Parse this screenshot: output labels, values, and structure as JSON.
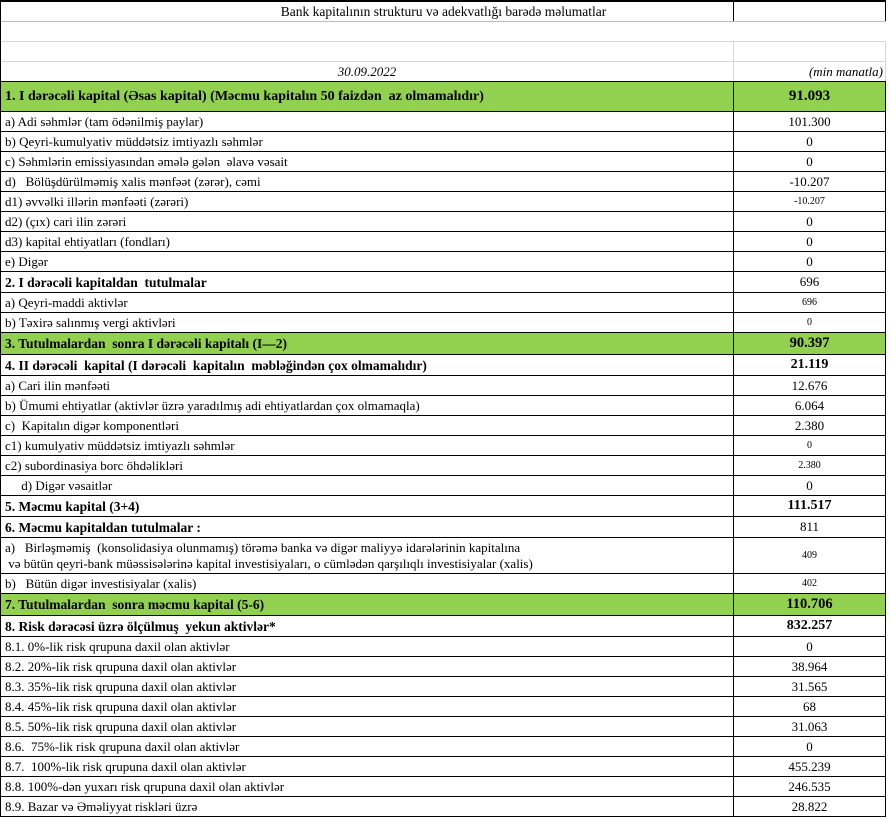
{
  "header": {
    "title": "Bank kapitalının strukturu və adekvatlığı barədə məlumatlar",
    "date": "30.09.2022",
    "unit": "(min manatla)"
  },
  "colors": {
    "highlight_green": "#92D050",
    "grid_black": "#000000",
    "grid_light": "#d8d8d8"
  },
  "table": {
    "rows": [
      {
        "kind": "main",
        "label": "1. I dərəcəli kapital (Əsas kapital) (Məcmu kapitalın 50 faizdən  az olmamalıdır)",
        "value": "91.093"
      },
      {
        "kind": "item",
        "label": "a) Adi səhmlər (tam ödənilmiş paylar)",
        "value": "101.300"
      },
      {
        "kind": "item",
        "label": "b) Qeyri-kumulyativ müddətsiz imtiyazlı səhmlər",
        "value": "0"
      },
      {
        "kind": "item",
        "label": "c) Səhmlərin emissiyasından əmələ gələn  əlavə vəsait",
        "value": "0"
      },
      {
        "kind": "item",
        "label": "d)   Bölüşdürülməmiş xalis mənfəət (zərər), cəmi",
        "value": "-10.207"
      },
      {
        "kind": "item-sm",
        "label": "d1) əvvəlki illərin mənfəəti (zərəri)",
        "value": "-10.207"
      },
      {
        "kind": "item",
        "label": "d2) (çıx) cari ilin zərəri",
        "value": "0"
      },
      {
        "kind": "item",
        "label": "d3) kapital ehtiyatları (fondları)",
        "value": "0"
      },
      {
        "kind": "item",
        "label": "e) Digər",
        "value": "0"
      },
      {
        "kind": "sec",
        "label": "2. I dərəcəli kapitaldan  tutulmalar",
        "value": "696"
      },
      {
        "kind": "item-sm",
        "label": "a) Qeyri-maddi aktivlər",
        "value": "696"
      },
      {
        "kind": "item-sm",
        "label": "b) Təxirə salınmış vergi aktivləri",
        "value": "0"
      },
      {
        "kind": "green",
        "label": "3. Tutulmalardan  sonra I dərəcəli kapitalı (I—2)",
        "value": "90.397"
      },
      {
        "kind": "sec-b",
        "label": "4. II dərəcəli  kapital (I dərəcəli  kapitalın  məbləğindən çox olmamalıdır)",
        "value": "21.119"
      },
      {
        "kind": "item",
        "label": "a) Cari ilin mənfəəti",
        "value": "12.676"
      },
      {
        "kind": "item",
        "label": "b) Ümumi ehtiyatlar (aktivlər üzrə yaradılmış adi ehtiyatlardan çox olmamaqla)",
        "value": "6.064"
      },
      {
        "kind": "item",
        "label": "c)  Kapitalın digər komponentləri",
        "value": "2.380"
      },
      {
        "kind": "item-sm",
        "label": "c1) kumulyativ müddətsiz imtiyazlı səhmlər",
        "value": "0"
      },
      {
        "kind": "item-sm",
        "label": "c2) subordinasiya borc öhdəlikləri",
        "value": "2.380"
      },
      {
        "kind": "item",
        "label": "     d) Digər vəsaitlər",
        "value": "0"
      },
      {
        "kind": "sec-b",
        "label": "5. Məcmu kapital (3+4)",
        "value": "111.517"
      },
      {
        "kind": "sec",
        "label": "6. Məcmu kapitaldan tutulmalar :",
        "value": "811"
      },
      {
        "kind": "tall",
        "label": "a)   Birləşməmiş  (konsolidasiya olunmamış) törəmə banka və digər maliyyə idarələrinin kapitalına\n və bütün qeyri-bank müəssisələrinə kapital investisiyaları, o cümlədən qarşılıqlı investisiyalar (xalis)",
        "value": "409"
      },
      {
        "kind": "item-sm",
        "label": "b)   Bütün digər investisiyalar (xalis)",
        "value": "402"
      },
      {
        "kind": "green",
        "label": "7. Tutulmalardan  sonra məcmu kapital (5-6)",
        "value": "110.706"
      },
      {
        "kind": "sec-b",
        "label": "8. Risk dərəcəsi üzrə ölçülmuş  yekun aktivlər*",
        "value": "832.257"
      },
      {
        "kind": "item",
        "label": "8.1. 0%-lik risk qrupuna daxil olan aktivlər",
        "value": "0"
      },
      {
        "kind": "item",
        "label": "8.2. 20%-lik risk qrupuna daxil olan aktivlər",
        "value": "38.964"
      },
      {
        "kind": "item",
        "label": "8.3. 35%-lik risk qrupuna daxil olan aktivlər",
        "value": "31.565"
      },
      {
        "kind": "item",
        "label": "8.4. 45%-lik risk qrupuna daxil olan aktivlər",
        "value": "68"
      },
      {
        "kind": "item",
        "label": "8.5. 50%-lik risk qrupuna daxil olan aktivlər",
        "value": "31.063"
      },
      {
        "kind": "item",
        "label": "8.6.  75%-lik risk qrupuna daxil olan aktivlər",
        "value": "0"
      },
      {
        "kind": "item",
        "label": "8.7.  100%-lik risk qrupuna daxil olan aktivlər",
        "value": "455.239"
      },
      {
        "kind": "item",
        "label": "8.8. 100%-dən yuxarı risk qrupuna daxil olan aktivlər",
        "value": "246.535"
      },
      {
        "kind": "item",
        "label": "8.9. Bazar və Əməliyyat riskləri üzrə",
        "value": "28.822"
      }
    ]
  }
}
